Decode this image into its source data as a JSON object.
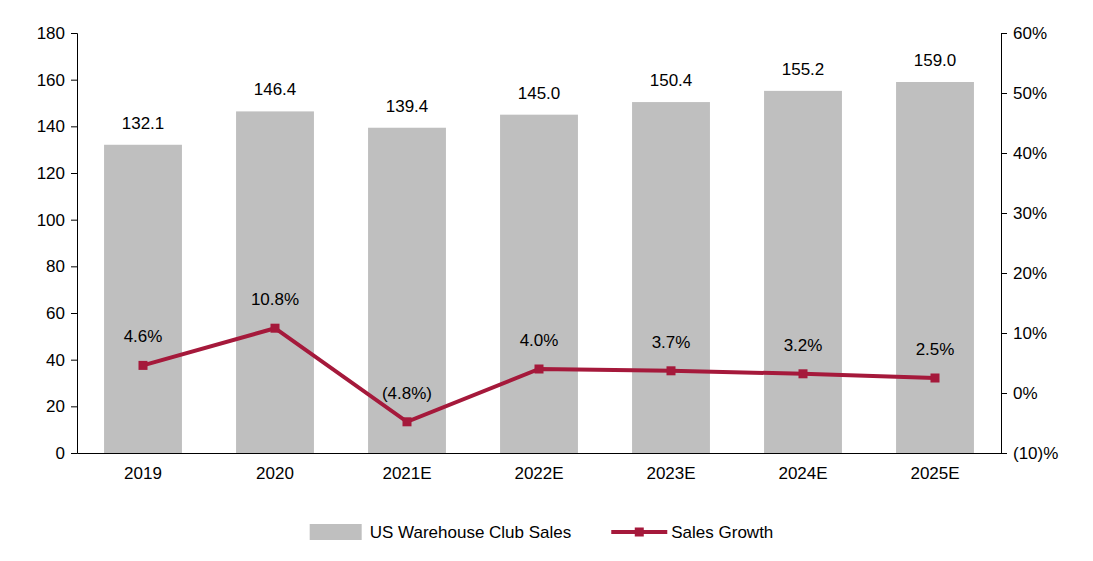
{
  "chart_data": {
    "type": "bar",
    "categories": [
      "2019",
      "2020",
      "2021E",
      "2022E",
      "2023E",
      "2024E",
      "2025E"
    ],
    "ylim": [
      0,
      180
    ],
    "yticks": [
      0,
      20,
      40,
      60,
      80,
      100,
      120,
      140,
      160,
      180
    ],
    "y2lim": [
      -10,
      60
    ],
    "y2ticks": [
      {
        "value": -10,
        "label": "(10)%"
      },
      {
        "value": 0,
        "label": "0%"
      },
      {
        "value": 10,
        "label": "10%"
      },
      {
        "value": 20,
        "label": "20%"
      },
      {
        "value": 30,
        "label": "30%"
      },
      {
        "value": 40,
        "label": "40%"
      },
      {
        "value": 50,
        "label": "50%"
      },
      {
        "value": 60,
        "label": "60%"
      }
    ],
    "grid": false,
    "legend": "bottom",
    "series": [
      {
        "name": "US Warehouse Club Sales",
        "type": "bar",
        "color": "#bfbfbf",
        "data_labels": true,
        "values": [
          132.1,
          146.4,
          139.4,
          145.0,
          150.4,
          155.2,
          159.0
        ],
        "value_labels": [
          "132.1",
          "146.4",
          "139.4",
          "145.0",
          "150.4",
          "155.2",
          "159.0"
        ]
      },
      {
        "name": "Sales Growth",
        "type": "line",
        "axis": "y2",
        "color": "#a5193b",
        "marker": "square",
        "line_style": "solid",
        "data_labels": true,
        "values": [
          4.6,
          10.8,
          -4.8,
          4.0,
          3.7,
          3.2,
          2.5
        ],
        "value_labels": [
          "4.6%",
          "10.8%",
          "(4.8%)",
          "4.0%",
          "3.7%",
          "3.2%",
          "2.5%"
        ]
      }
    ]
  }
}
